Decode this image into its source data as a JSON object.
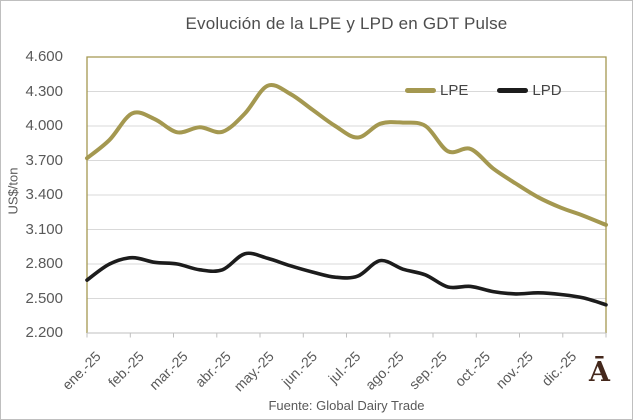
{
  "watermark": {
    "text": "Ā",
    "color": "#44281C"
  },
  "colors": {
    "background": "#FFFFFF",
    "canvas_border": "#BFBFBF",
    "plot_border": "#A49850",
    "gridline": "#D9D9D9",
    "axis": "#BFBFBF",
    "tick_text": "#595959",
    "title_text": "#4D4D4D"
  },
  "chart_data": {
    "type": "line",
    "title": "Evolución de la LPE y LPD en GDT Pulse",
    "ylabel": "US$/ton",
    "source_note": "Fuente: Global Dairy Trade",
    "grid": "horizontal",
    "line_style": "smooth",
    "legend": {
      "position": "inside-top-right",
      "entries": [
        "LPE",
        "LPD"
      ]
    },
    "ylim": [
      2200,
      4600
    ],
    "y_tick_step": 300,
    "y_ticks": [
      {
        "value": 4600,
        "label": "4.600"
      },
      {
        "value": 4300,
        "label": "4.300"
      },
      {
        "value": 4000,
        "label": "4.000"
      },
      {
        "value": 3700,
        "label": "3.700"
      },
      {
        "value": 3400,
        "label": "3.400"
      },
      {
        "value": 3100,
        "label": "3.100"
      },
      {
        "value": 2800,
        "label": "2.800"
      },
      {
        "value": 2500,
        "label": "2.500"
      },
      {
        "value": 2200,
        "label": "2.200"
      }
    ],
    "x_months": [
      "ene.-25",
      "feb.-25",
      "mar.-25",
      "abr.-25",
      "may.-25",
      "jun.-25",
      "jul.-25",
      "ago.-25",
      "sep.-25",
      "oct.-25",
      "nov.-25",
      "dic.-25"
    ],
    "points_per_month": 2,
    "series": [
      {
        "name": "LPE",
        "color": "#A49850",
        "line_width": 4,
        "values": [
          3720,
          3880,
          4110,
          4060,
          3945,
          3990,
          3950,
          4110,
          4350,
          4280,
          4140,
          4000,
          3900,
          4020,
          4030,
          4000,
          3780,
          3800,
          3630,
          3500,
          3380,
          3290,
          3220,
          3140
        ]
      },
      {
        "name": "LPD",
        "color": "#1C1C1C",
        "line_width": 3.6,
        "values": [
          2660,
          2800,
          2855,
          2815,
          2800,
          2750,
          2750,
          2890,
          2850,
          2785,
          2730,
          2685,
          2695,
          2830,
          2755,
          2705,
          2600,
          2605,
          2560,
          2540,
          2550,
          2535,
          2505,
          2445
        ]
      }
    ]
  }
}
